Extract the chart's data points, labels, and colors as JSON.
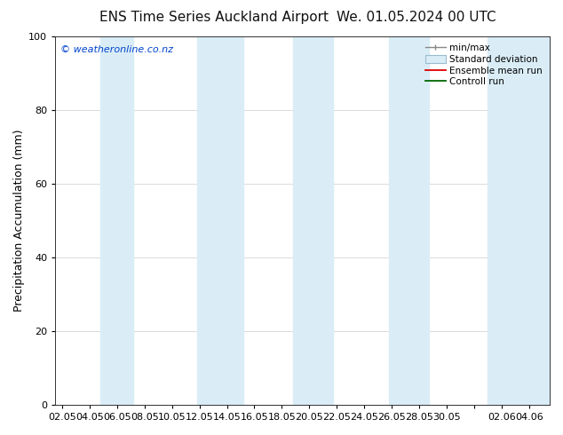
{
  "title_left": "ENS Time Series Auckland Airport",
  "title_right": "We. 01.05.2024 00 UTC",
  "ylabel": "Precipitation Accumulation (mm)",
  "ylim": [
    0,
    100
  ],
  "yticks": [
    0,
    20,
    40,
    60,
    80,
    100
  ],
  "xtick_labels": [
    "02.05",
    "04.05",
    "06.05",
    "08.05",
    "10.05",
    "12.05",
    "14.05",
    "16.05",
    "18.05",
    "20.05",
    "22.05",
    "24.05",
    "26.05",
    "28.05",
    "30.05",
    "",
    "02.06",
    "04.06"
  ],
  "xtick_positions": [
    0,
    2,
    4,
    6,
    8,
    10,
    12,
    14,
    16,
    18,
    20,
    22,
    24,
    26,
    28,
    30,
    32,
    34
  ],
  "xlim": [
    -0.5,
    35.5
  ],
  "watermark": "© weatheronline.co.nz",
  "watermark_color": "#0044cc",
  "background_color": "#ffffff",
  "plot_bg_color": "#ffffff",
  "legend_labels": [
    "min/max",
    "Standard deviation",
    "Ensemble mean run",
    "Controll run"
  ],
  "shade_color": "#daedf7",
  "title_fontsize": 11,
  "axis_label_fontsize": 9,
  "tick_fontsize": 8,
  "shaded_regions": [
    [
      2.8,
      5.2
    ],
    [
      9.8,
      13.2
    ],
    [
      16.8,
      19.7
    ],
    [
      23.8,
      26.7
    ],
    [
      31.0,
      35.5
    ]
  ]
}
